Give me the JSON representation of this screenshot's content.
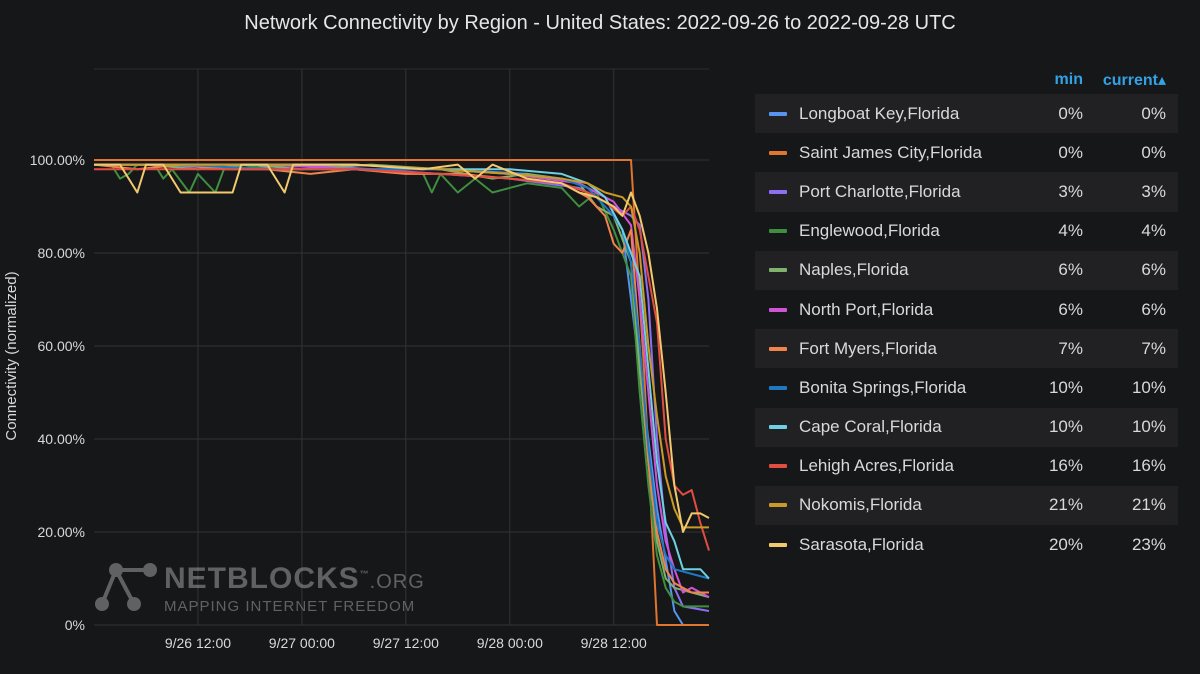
{
  "title": "Network Connectivity by Region - United States: 2022-09-26 to 2022-09-28 UTC",
  "legend_header": {
    "min": "min",
    "current": "current▴"
  },
  "watermark": {
    "name": "NETBLOCKS",
    "tm": "™",
    "suffix": ".ORG",
    "tagline": "MAPPING INTERNET FREEDOM"
  },
  "chart_data": {
    "type": "line",
    "title": "Network Connectivity by Region - United States: 2022-09-26 to 2022-09-28 UTC",
    "ylabel": "Connectivity (normalized)",
    "xlabel": "",
    "xlim": [
      0,
      71
    ],
    "xunit": "hours since first sample",
    "x_ticks": [
      {
        "label": "9/26 12:00",
        "at": 12
      },
      {
        "label": "9/27 00:00",
        "at": 24
      },
      {
        "label": "9/27 12:00",
        "at": 36
      },
      {
        "label": "9/28 00:00",
        "at": 48
      },
      {
        "label": "9/28 12:00",
        "at": 60
      }
    ],
    "ylim": [
      0,
      100
    ],
    "y_ticks": [
      "0%",
      "20.00%",
      "40.00%",
      "60.00%",
      "80.00%",
      "100.00%"
    ],
    "y_tick_values": [
      0,
      20,
      40,
      60,
      80,
      100
    ],
    "grid": true,
    "legend": "right",
    "series": [
      {
        "name": "Longboat Key,Florida",
        "color": "#5794f2",
        "min": "0%",
        "current": "0%",
        "points": [
          [
            0,
            99
          ],
          [
            10,
            99
          ],
          [
            20,
            99
          ],
          [
            30,
            99
          ],
          [
            40,
            98
          ],
          [
            50,
            97
          ],
          [
            56,
            95
          ],
          [
            59,
            92
          ],
          [
            61,
            85
          ],
          [
            63,
            55
          ],
          [
            65,
            25
          ],
          [
            67,
            3
          ],
          [
            68,
            0
          ],
          [
            71,
            0
          ]
        ]
      },
      {
        "name": "Saint James City,Florida",
        "color": "#e0752d",
        "min": "0%",
        "current": "0%",
        "points": [
          [
            0,
            100
          ],
          [
            20,
            100
          ],
          [
            40,
            100
          ],
          [
            55,
            100
          ],
          [
            59,
            100
          ],
          [
            62,
            100
          ],
          [
            63.5,
            55
          ],
          [
            65,
            0
          ],
          [
            71,
            0
          ]
        ]
      },
      {
        "name": "Port Charlotte,Florida",
        "color": "#8f6ef2",
        "min": "3%",
        "current": "3%",
        "points": [
          [
            0,
            99
          ],
          [
            8,
            99
          ],
          [
            16,
            98
          ],
          [
            24,
            99
          ],
          [
            32,
            98
          ],
          [
            40,
            97
          ],
          [
            48,
            96
          ],
          [
            52,
            95
          ],
          [
            56,
            94
          ],
          [
            58,
            92
          ],
          [
            60,
            90
          ],
          [
            62,
            88
          ],
          [
            63,
            86
          ],
          [
            64,
            70
          ],
          [
            65,
            40
          ],
          [
            66,
            20
          ],
          [
            67,
            8
          ],
          [
            68,
            4
          ],
          [
            71,
            3
          ]
        ]
      },
      {
        "name": "Englewood,Florida",
        "color": "#3f8f3f",
        "min": "4%",
        "current": "4%",
        "points": [
          [
            0,
            99
          ],
          [
            2,
            99
          ],
          [
            3,
            96
          ],
          [
            4,
            97
          ],
          [
            5,
            99
          ],
          [
            7,
            99
          ],
          [
            8,
            96
          ],
          [
            9,
            98
          ],
          [
            11,
            93
          ],
          [
            12,
            97
          ],
          [
            14,
            93
          ],
          [
            15,
            98
          ],
          [
            17,
            99
          ],
          [
            20,
            98
          ],
          [
            24,
            98
          ],
          [
            30,
            98
          ],
          [
            38,
            97
          ],
          [
            39,
            93
          ],
          [
            40,
            97
          ],
          [
            42,
            93
          ],
          [
            44,
            96
          ],
          [
            46,
            93
          ],
          [
            50,
            95
          ],
          [
            54,
            94
          ],
          [
            56,
            90
          ],
          [
            58,
            93
          ],
          [
            60,
            85
          ],
          [
            61,
            80
          ],
          [
            62,
            75
          ],
          [
            63,
            50
          ],
          [
            64,
            30
          ],
          [
            65,
            15
          ],
          [
            66,
            8
          ],
          [
            67,
            5
          ],
          [
            68,
            4
          ],
          [
            71,
            4
          ]
        ]
      },
      {
        "name": "Naples,Florida",
        "color": "#7eb26d",
        "min": "6%",
        "current": "6%",
        "points": [
          [
            0,
            99
          ],
          [
            6,
            99
          ],
          [
            12,
            98
          ],
          [
            18,
            99
          ],
          [
            24,
            98
          ],
          [
            32,
            99
          ],
          [
            40,
            98
          ],
          [
            46,
            96
          ],
          [
            50,
            97
          ],
          [
            54,
            96
          ],
          [
            56,
            95
          ],
          [
            58,
            90
          ],
          [
            60,
            88
          ],
          [
            62,
            78
          ],
          [
            63,
            55
          ],
          [
            64,
            35
          ],
          [
            65,
            18
          ],
          [
            66,
            10
          ],
          [
            67,
            8
          ],
          [
            69,
            7
          ],
          [
            71,
            6
          ]
        ]
      },
      {
        "name": "North Port,Florida",
        "color": "#d154d8",
        "min": "6%",
        "current": "6%",
        "points": [
          [
            0,
            99
          ],
          [
            10,
            99
          ],
          [
            20,
            99
          ],
          [
            30,
            98
          ],
          [
            40,
            98
          ],
          [
            48,
            97
          ],
          [
            52,
            96
          ],
          [
            56,
            95
          ],
          [
            58,
            93
          ],
          [
            60,
            91
          ],
          [
            62,
            86
          ],
          [
            63,
            70
          ],
          [
            64,
            50
          ],
          [
            65,
            30
          ],
          [
            66,
            18
          ],
          [
            67,
            12
          ],
          [
            68,
            7
          ],
          [
            69,
            8
          ],
          [
            71,
            6
          ]
        ]
      },
      {
        "name": "Fort Myers,Florida",
        "color": "#f2834a",
        "min": "7%",
        "current": "7%",
        "points": [
          [
            0,
            99
          ],
          [
            5,
            98
          ],
          [
            10,
            99
          ],
          [
            15,
            98
          ],
          [
            20,
            98
          ],
          [
            25,
            97
          ],
          [
            30,
            98
          ],
          [
            36,
            97
          ],
          [
            42,
            97
          ],
          [
            48,
            96
          ],
          [
            54,
            95
          ],
          [
            57,
            92
          ],
          [
            59,
            88
          ],
          [
            60,
            82
          ],
          [
            61,
            80
          ],
          [
            62,
            85
          ],
          [
            63,
            60
          ],
          [
            64,
            35
          ],
          [
            65,
            20
          ],
          [
            66,
            12
          ],
          [
            67,
            9
          ],
          [
            69,
            7
          ],
          [
            71,
            7
          ]
        ]
      },
      {
        "name": "Bonita Springs,Florida",
        "color": "#1f78c1",
        "min": "10%",
        "current": "10%",
        "points": [
          [
            0,
            99
          ],
          [
            10,
            99
          ],
          [
            20,
            98
          ],
          [
            30,
            98
          ],
          [
            40,
            98
          ],
          [
            48,
            97
          ],
          [
            54,
            96
          ],
          [
            57,
            94
          ],
          [
            59,
            90
          ],
          [
            60,
            88
          ],
          [
            61,
            85
          ],
          [
            62,
            78
          ],
          [
            63,
            60
          ],
          [
            64,
            38
          ],
          [
            65,
            22
          ],
          [
            66,
            15
          ],
          [
            67,
            12
          ],
          [
            69,
            11
          ],
          [
            71,
            10
          ]
        ]
      },
      {
        "name": "Cape Coral,Florida",
        "color": "#6ed0e0",
        "min": "10%",
        "current": "10%",
        "points": [
          [
            0,
            99
          ],
          [
            10,
            99
          ],
          [
            20,
            99
          ],
          [
            30,
            99
          ],
          [
            40,
            98
          ],
          [
            48,
            98
          ],
          [
            54,
            97
          ],
          [
            57,
            95
          ],
          [
            59,
            92
          ],
          [
            61,
            85
          ],
          [
            62,
            80
          ],
          [
            63,
            75
          ],
          [
            64,
            55
          ],
          [
            65,
            35
          ],
          [
            66,
            22
          ],
          [
            67,
            18
          ],
          [
            68,
            12
          ],
          [
            70,
            12
          ],
          [
            71,
            10
          ]
        ]
      },
      {
        "name": "Lehigh Acres,Florida",
        "color": "#e24d42",
        "min": "16%",
        "current": "16%",
        "points": [
          [
            0,
            98
          ],
          [
            10,
            98
          ],
          [
            20,
            98
          ],
          [
            30,
            98
          ],
          [
            40,
            97
          ],
          [
            48,
            96
          ],
          [
            54,
            95
          ],
          [
            57,
            93
          ],
          [
            59,
            91
          ],
          [
            61,
            88
          ],
          [
            62,
            90
          ],
          [
            63,
            85
          ],
          [
            64,
            75
          ],
          [
            65,
            65
          ],
          [
            66,
            40
          ],
          [
            67,
            30
          ],
          [
            68,
            28
          ],
          [
            69,
            29
          ],
          [
            70,
            22
          ],
          [
            71,
            16
          ]
        ]
      },
      {
        "name": "Nokomis,Florida",
        "color": "#c99a26",
        "min": "21%",
        "current": "21%",
        "points": [
          [
            0,
            99
          ],
          [
            10,
            99
          ],
          [
            20,
            99
          ],
          [
            30,
            99
          ],
          [
            40,
            98
          ],
          [
            48,
            97
          ],
          [
            54,
            96
          ],
          [
            57,
            95
          ],
          [
            59,
            93
          ],
          [
            61,
            92
          ],
          [
            62,
            90
          ],
          [
            63,
            80
          ],
          [
            64,
            60
          ],
          [
            65,
            45
          ],
          [
            66,
            32
          ],
          [
            67,
            25
          ],
          [
            68,
            21
          ],
          [
            69,
            21
          ],
          [
            71,
            21
          ]
        ]
      },
      {
        "name": "Sarasota,Florida",
        "color": "#f2c96d",
        "min": "20%",
        "current": "23%",
        "points": [
          [
            0,
            99
          ],
          [
            3,
            99
          ],
          [
            5,
            93
          ],
          [
            6,
            99
          ],
          [
            8,
            99
          ],
          [
            10,
            93
          ],
          [
            16,
            93
          ],
          [
            17,
            99
          ],
          [
            20,
            99
          ],
          [
            22,
            93
          ],
          [
            23,
            99
          ],
          [
            30,
            99
          ],
          [
            38,
            98
          ],
          [
            42,
            99
          ],
          [
            44,
            96
          ],
          [
            46,
            99
          ],
          [
            50,
            96
          ],
          [
            54,
            95
          ],
          [
            56,
            93
          ],
          [
            58,
            92
          ],
          [
            60,
            90
          ],
          [
            61,
            88
          ],
          [
            62,
            93
          ],
          [
            63,
            88
          ],
          [
            64,
            80
          ],
          [
            65,
            68
          ],
          [
            66,
            50
          ],
          [
            67,
            30
          ],
          [
            68,
            20
          ],
          [
            69,
            24
          ],
          [
            70,
            24
          ],
          [
            71,
            23
          ]
        ]
      }
    ]
  }
}
